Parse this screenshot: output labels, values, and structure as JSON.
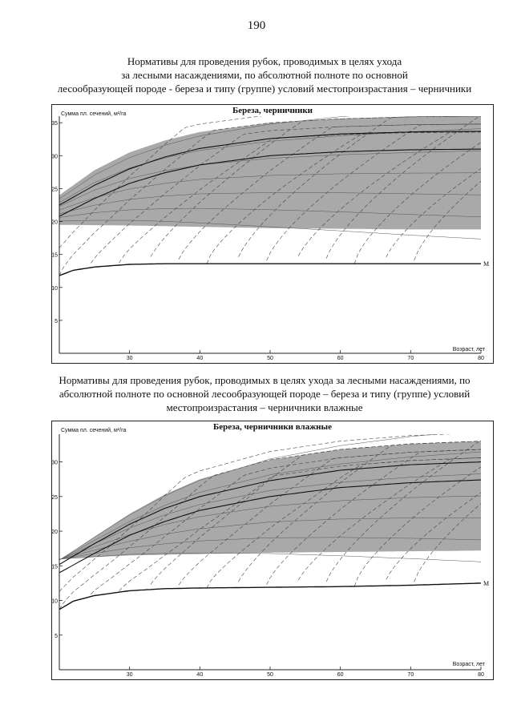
{
  "page_number": "190",
  "heading1": {
    "lines": [
      "Нормативы для проведения рубок, проводимых в целях ухода",
      "за лесными насаждениями, по абсолютной полноте по основной",
      "лесообразующей породе - береза и типу (группе) условий местопроизрастания – черничники"
    ]
  },
  "heading2": {
    "lines": [
      "Нормативы для проведения рубок, проводимых в целях ухода за лесными насаждениями, по",
      "абсолютной полноте по основной лесообразующей породе – береза и типу (группе) условий",
      "местопроизрастания – черничники влажные"
    ]
  },
  "colors": {
    "band": "#a9a9a9",
    "curve": "#111111",
    "dash": "#444444",
    "frame": "#222222"
  },
  "chart_data": [
    {
      "type": "line",
      "title": "Береза, черничники",
      "ylabel": "Сумма пл. сечений, м²/га",
      "xlabel": "Возраст, лет",
      "xlim": [
        20,
        80
      ],
      "ylim": [
        0,
        36
      ],
      "x_ticks": [
        30,
        40,
        50,
        60,
        70,
        80
      ],
      "y_ticks": [
        5,
        10,
        15,
        20,
        25,
        30,
        35
      ],
      "shaded_band": {
        "upper": [
          [
            20,
            24
          ],
          [
            25,
            27.8
          ],
          [
            30,
            30.5
          ],
          [
            35,
            32.3
          ],
          [
            40,
            33.6
          ],
          [
            50,
            35.0
          ],
          [
            60,
            35.6
          ],
          [
            70,
            35.9
          ],
          [
            80,
            36
          ]
        ],
        "lower": [
          [
            20,
            19.5
          ],
          [
            30,
            19.4
          ],
          [
            40,
            19.2
          ],
          [
            50,
            19.0
          ],
          [
            60,
            18.9
          ],
          [
            70,
            18.8
          ],
          [
            80,
            18.8
          ]
        ]
      },
      "series": [
        {
          "points": [
            [
              20,
              20.8
            ],
            [
              25,
              23.5
            ],
            [
              30,
              25.8
            ],
            [
              35,
              27.4
            ],
            [
              40,
              28.6
            ],
            [
              50,
              30.0
            ],
            [
              60,
              30.6
            ],
            [
              70,
              30.9
            ],
            [
              80,
              31.0
            ]
          ]
        },
        {
          "points": [
            [
              20,
              22.5
            ],
            [
              25,
              25.5
            ],
            [
              30,
              28.0
            ],
            [
              35,
              29.8
            ],
            [
              40,
              31.1
            ],
            [
              50,
              32.6
            ],
            [
              60,
              33.3
            ],
            [
              70,
              33.6
            ],
            [
              80,
              33.7
            ]
          ]
        },
        {
          "label": "M",
          "points": [
            [
              20,
              11.8
            ],
            [
              22,
              12.6
            ],
            [
              25,
              13.1
            ],
            [
              30,
              13.5
            ],
            [
              35,
              13.6
            ],
            [
              40,
              13.6
            ],
            [
              50,
              13.6
            ],
            [
              60,
              13.6
            ],
            [
              70,
              13.6
            ],
            [
              80,
              13.6
            ]
          ]
        }
      ]
    },
    {
      "type": "line",
      "title": "Береза, черничники влажные",
      "ylabel": "Сумма пл. сечений, м²/га",
      "xlabel": "Возраст, лет",
      "xlim": [
        20,
        80
      ],
      "ylim": [
        0,
        34
      ],
      "x_ticks": [
        30,
        40,
        50,
        60,
        70,
        80
      ],
      "y_ticks": [
        5,
        10,
        15,
        20,
        25,
        30
      ],
      "shaded_band": {
        "upper": [
          [
            20,
            15.8
          ],
          [
            25,
            19.2
          ],
          [
            30,
            22.5
          ],
          [
            35,
            25.3
          ],
          [
            40,
            27.5
          ],
          [
            50,
            30.3
          ],
          [
            60,
            31.8
          ],
          [
            70,
            32.6
          ],
          [
            80,
            33.0
          ]
        ],
        "lower": [
          [
            20,
            16.0
          ],
          [
            30,
            16.5
          ],
          [
            40,
            16.7
          ],
          [
            50,
            16.9
          ],
          [
            60,
            17.0
          ],
          [
            70,
            17.1
          ],
          [
            80,
            17.2
          ]
        ]
      },
      "series": [
        {
          "points": [
            [
              20,
              14.0
            ],
            [
              25,
              16.8
            ],
            [
              30,
              19.4
            ],
            [
              35,
              21.4
            ],
            [
              40,
              23.0
            ],
            [
              50,
              25.0
            ],
            [
              60,
              26.3
            ],
            [
              70,
              27.0
            ],
            [
              80,
              27.4
            ]
          ]
        },
        {
          "points": [
            [
              20,
              15.2
            ],
            [
              25,
              18.2
            ],
            [
              30,
              21.0
            ],
            [
              35,
              23.3
            ],
            [
              40,
              25.0
            ],
            [
              50,
              27.3
            ],
            [
              60,
              28.8
            ],
            [
              70,
              29.6
            ],
            [
              80,
              30.0
            ]
          ]
        },
        {
          "label": "M",
          "points": [
            [
              20,
              8.7
            ],
            [
              22,
              9.9
            ],
            [
              25,
              10.7
            ],
            [
              30,
              11.4
            ],
            [
              35,
              11.7
            ],
            [
              40,
              11.8
            ],
            [
              50,
              11.9
            ],
            [
              60,
              12.0
            ],
            [
              70,
              12.2
            ],
            [
              80,
              12.5
            ]
          ]
        }
      ]
    }
  ]
}
